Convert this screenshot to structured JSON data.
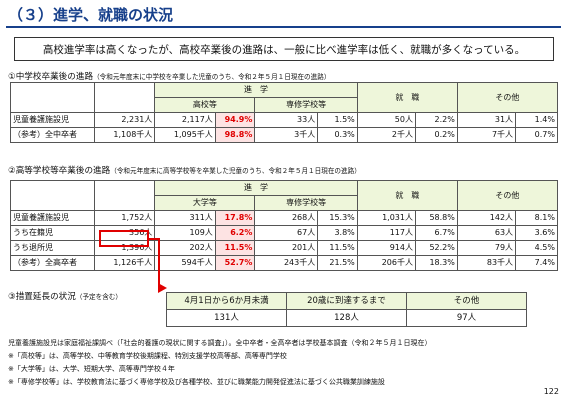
{
  "header": {
    "title": "（３）進学、就職の状況",
    "summary": "高校進学率は高くなったが、高校卒業後の進路は、一般に比べ進学率は低く、就職が多くなっている。"
  },
  "section1": {
    "heading": "①中学校卒業後の進路",
    "subheading": "（令和元年度末に中学校を卒業した児童のうち、令和２年５月１日現在の進路）",
    "headers": {
      "shingaku": "進　学",
      "koukou": "高校等",
      "senshu": "専修学校等",
      "shushoku": "就　職",
      "sonota": "その他"
    },
    "rows": [
      {
        "label": "児童養護施設児",
        "total": "2,231人",
        "k_n": "2,117人",
        "k_p": "94.9%",
        "s_n": "33人",
        "s_p": "1.5%",
        "j_n": "50人",
        "j_p": "2.2%",
        "o_n": "31人",
        "o_p": "1.4%"
      },
      {
        "label": "（参考）全中卒者",
        "total": "1,108千人",
        "k_n": "1,095千人",
        "k_p": "98.8%",
        "s_n": "3千人",
        "s_p": "0.3%",
        "j_n": "2千人",
        "j_p": "0.2%",
        "o_n": "7千人",
        "o_p": "0.7%"
      }
    ]
  },
  "section2": {
    "heading": "②高等学校等卒業後の進路",
    "subheading": "（令和元年度末に高等学校等を卒業した児童のうち、令和２年５月１日現在の進路）",
    "headers": {
      "shingaku": "進　学",
      "daigaku": "大学等",
      "senshu": "専修学校等",
      "shushoku": "就　職",
      "sonota": "その他"
    },
    "rows": [
      {
        "label": "児童養護施設児",
        "total": "1,752人",
        "d_n": "311人",
        "d_p": "17.8%",
        "s_n": "268人",
        "s_p": "15.3%",
        "j_n": "1,031人",
        "j_p": "58.8%",
        "o_n": "142人",
        "o_p": "8.1%"
      },
      {
        "label": "うち在籍児",
        "total": "356人",
        "d_n": "109人",
        "d_p": "6.2%",
        "s_n": "67人",
        "s_p": "3.8%",
        "j_n": "117人",
        "j_p": "6.7%",
        "o_n": "63人",
        "o_p": "3.6%"
      },
      {
        "label": "うち退所児",
        "total": "1,396人",
        "d_n": "202人",
        "d_p": "11.5%",
        "s_n": "201人",
        "s_p": "11.5%",
        "j_n": "914人",
        "j_p": "52.2%",
        "o_n": "79人",
        "o_p": "4.5%"
      },
      {
        "label": "（参考）全高卒者",
        "total": "1,126千人",
        "d_n": "594千人",
        "d_p": "52.7%",
        "s_n": "243千人",
        "s_p": "21.5%",
        "j_n": "206千人",
        "j_p": "18.3%",
        "o_n": "83千人",
        "o_p": "7.4%"
      }
    ]
  },
  "section3": {
    "heading": "③措置延長の状況",
    "subheading": "（予定を含む）",
    "headers": [
      "4月1日から6か月未満",
      "20歳に到達するまで",
      "その他"
    ],
    "values": [
      "131人",
      "128人",
      "97人"
    ]
  },
  "notes": [
    "児童養護施設児は家庭福祉課調べ（「社会的養護の現状に関する調査」）。全中卒者・全高卒者は学校基本調査（令和２年５月１日現在）",
    "※「高校等」は、高等学校、中等教育学校後期課程、特別支援学校高等部、高等専門学校",
    "※「大学等」は、大学、短期大学、高等専門学校４年",
    "※「専修学校等」は、学校教育法に基づく専修学校及び各種学校、並びに職業能力開発促進法に基づく公共職業訓練施設"
  ],
  "page_number": "122",
  "colors": {
    "title": "#17408b",
    "header_bg": "#eef6da",
    "highlight_bg": "#fde3e3",
    "highlight_text": "#e00000"
  }
}
